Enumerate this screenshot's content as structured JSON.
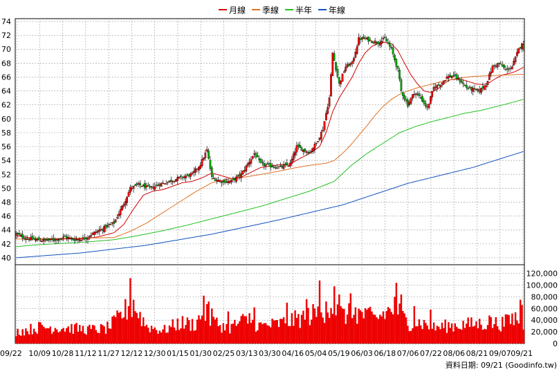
{
  "chart_data": [
    {
      "type": "candlestick",
      "legend": [
        {
          "label": "月線",
          "color": "#d00000"
        },
        {
          "label": "季線",
          "color": "#e07020"
        },
        {
          "label": "半年",
          "color": "#20c020"
        },
        {
          "label": "年線",
          "color": "#1050c0"
        }
      ],
      "legend_placement": "top-center",
      "ylim": [
        39,
        74.4
      ],
      "yticks": [
        40,
        42,
        44,
        46,
        48,
        50,
        52,
        54,
        56,
        58,
        60,
        62,
        64,
        66,
        68,
        70,
        72,
        74
      ],
      "grid": true,
      "up_color": "#ee0000",
      "down_color": "#00aa00",
      "price_anchors": [
        [
          0,
          43.4
        ],
        [
          6,
          42.8
        ],
        [
          12,
          42.6
        ],
        [
          18,
          42.5
        ],
        [
          24,
          42.6
        ],
        [
          30,
          43.0
        ],
        [
          36,
          42.6
        ],
        [
          42,
          42.8
        ],
        [
          48,
          43.6
        ],
        [
          54,
          44.3
        ],
        [
          60,
          45.0
        ],
        [
          66,
          47.8
        ],
        [
          70,
          50.0
        ],
        [
          75,
          50.5
        ],
        [
          82,
          50.0
        ],
        [
          88,
          50.6
        ],
        [
          94,
          51.0
        ],
        [
          100,
          51.5
        ],
        [
          108,
          52.0
        ],
        [
          113,
          53.5
        ],
        [
          117,
          55.5
        ],
        [
          120,
          51.5
        ],
        [
          126,
          51.0
        ],
        [
          132,
          51.0
        ],
        [
          138,
          52.0
        ],
        [
          142,
          53.5
        ],
        [
          146,
          55.0
        ],
        [
          150,
          53.5
        ],
        [
          156,
          53.2
        ],
        [
          162,
          53.0
        ],
        [
          168,
          53.5
        ],
        [
          172,
          56.0
        ],
        [
          176,
          55.5
        ],
        [
          180,
          55.2
        ],
        [
          184,
          56.5
        ],
        [
          188,
          58.5
        ],
        [
          190,
          60.8
        ],
        [
          192,
          63.0
        ],
        [
          194,
          69.5
        ],
        [
          198,
          65.0
        ],
        [
          202,
          67.5
        ],
        [
          206,
          68.0
        ],
        [
          210,
          71.5
        ],
        [
          214,
          71.5
        ],
        [
          218,
          71.2
        ],
        [
          222,
          71.0
        ],
        [
          226,
          71.5
        ],
        [
          230,
          70.0
        ],
        [
          234,
          67.0
        ],
        [
          236,
          64.0
        ],
        [
          240,
          62.0
        ],
        [
          244,
          63.8
        ],
        [
          248,
          63.0
        ],
        [
          252,
          61.5
        ],
        [
          256,
          64.5
        ],
        [
          260,
          65.0
        ],
        [
          264,
          66.0
        ],
        [
          268,
          66.2
        ],
        [
          272,
          65.5
        ],
        [
          276,
          64.5
        ],
        [
          280,
          64.2
        ],
        [
          284,
          64.0
        ],
        [
          288,
          65.0
        ],
        [
          292,
          67.5
        ],
        [
          296,
          68.0
        ],
        [
          300,
          67.0
        ],
        [
          304,
          67.5
        ],
        [
          308,
          70.0
        ],
        [
          310,
          71.0
        ],
        [
          311,
          70.0
        ]
      ],
      "ma_series": [
        {
          "name": "月線",
          "color": "#d00000",
          "anchors": [
            [
              0,
              43.2
            ],
            [
              10,
              42.8
            ],
            [
              20,
              42.6
            ],
            [
              30,
              42.7
            ],
            [
              40,
              42.7
            ],
            [
              50,
              43.0
            ],
            [
              60,
              43.6
            ],
            [
              66,
              44.8
            ],
            [
              72,
              47.0
            ],
            [
              78,
              49.0
            ],
            [
              84,
              49.6
            ],
            [
              90,
              49.8
            ],
            [
              96,
              50.3
            ],
            [
              102,
              50.8
            ],
            [
              108,
              51.0
            ],
            [
              114,
              51.5
            ],
            [
              120,
              52.2
            ],
            [
              126,
              51.8
            ],
            [
              132,
              51.4
            ],
            [
              138,
              51.6
            ],
            [
              144,
              52.3
            ],
            [
              150,
              53.0
            ],
            [
              156,
              53.2
            ],
            [
              162,
              53.4
            ],
            [
              168,
              53.5
            ],
            [
              174,
              54.3
            ],
            [
              180,
              55.0
            ],
            [
              186,
              56.0
            ],
            [
              190,
              58.0
            ],
            [
              194,
              61.0
            ],
            [
              198,
              63.0
            ],
            [
              202,
              64.5
            ],
            [
              206,
              66.0
            ],
            [
              210,
              68.0
            ],
            [
              214,
              69.5
            ],
            [
              218,
              70.4
            ],
            [
              222,
              70.9
            ],
            [
              226,
              71.0
            ],
            [
              230,
              70.8
            ],
            [
              234,
              69.8
            ],
            [
              238,
              68.0
            ],
            [
              242,
              66.3
            ],
            [
              246,
              65.0
            ],
            [
              250,
              64.0
            ],
            [
              254,
              63.8
            ],
            [
              258,
              64.2
            ],
            [
              262,
              65.0
            ],
            [
              266,
              65.6
            ],
            [
              270,
              65.7
            ],
            [
              274,
              65.6
            ],
            [
              278,
              65.3
            ],
            [
              282,
              65.0
            ],
            [
              286,
              64.9
            ],
            [
              290,
              65.2
            ],
            [
              294,
              65.8
            ],
            [
              298,
              66.3
            ],
            [
              302,
              66.5
            ],
            [
              306,
              66.8
            ],
            [
              311,
              67.4
            ]
          ]
        },
        {
          "name": "季線",
          "color": "#e07020",
          "anchors": [
            [
              0,
              42.7
            ],
            [
              30,
              42.8
            ],
            [
              60,
              42.9
            ],
            [
              70,
              43.8
            ],
            [
              80,
              45.0
            ],
            [
              90,
              46.5
            ],
            [
              100,
              48.0
            ],
            [
              110,
              49.5
            ],
            [
              120,
              50.8
            ],
            [
              130,
              51.3
            ],
            [
              140,
              51.6
            ],
            [
              150,
              52.0
            ],
            [
              160,
              52.4
            ],
            [
              170,
              52.9
            ],
            [
              180,
              53.3
            ],
            [
              190,
              53.6
            ],
            [
              195,
              54.0
            ],
            [
              200,
              55.0
            ],
            [
              205,
              56.2
            ],
            [
              210,
              57.6
            ],
            [
              215,
              59.0
            ],
            [
              220,
              60.5
            ],
            [
              225,
              61.8
            ],
            [
              230,
              62.8
            ],
            [
              235,
              63.5
            ],
            [
              240,
              64.0
            ],
            [
              245,
              64.4
            ],
            [
              250,
              64.7
            ],
            [
              260,
              65.3
            ],
            [
              270,
              65.8
            ],
            [
              280,
              66.1
            ],
            [
              290,
              66.2
            ],
            [
              300,
              66.3
            ],
            [
              311,
              66.4
            ]
          ]
        },
        {
          "name": "半年",
          "color": "#20c020",
          "anchors": [
            [
              0,
              41.6
            ],
            [
              15,
              41.9
            ],
            [
              30,
              42.1
            ],
            [
              45,
              42.3
            ],
            [
              60,
              42.6
            ],
            [
              75,
              43.2
            ],
            [
              90,
              43.9
            ],
            [
              105,
              44.7
            ],
            [
              120,
              45.6
            ],
            [
              135,
              46.5
            ],
            [
              150,
              47.4
            ],
            [
              165,
              48.5
            ],
            [
              180,
              49.6
            ],
            [
              195,
              51.0
            ],
            [
              205,
              53.2
            ],
            [
              215,
              55.0
            ],
            [
              225,
              56.5
            ],
            [
              235,
              58.0
            ],
            [
              245,
              58.9
            ],
            [
              255,
              59.6
            ],
            [
              265,
              60.2
            ],
            [
              275,
              60.8
            ],
            [
              285,
              61.2
            ],
            [
              295,
              61.8
            ],
            [
              305,
              62.4
            ],
            [
              311,
              62.8
            ]
          ]
        },
        {
          "name": "年線",
          "color": "#1050c0",
          "anchors": [
            [
              0,
              40.0
            ],
            [
              40,
              40.7
            ],
            [
              80,
              41.8
            ],
            [
              120,
              43.4
            ],
            [
              160,
              45.4
            ],
            [
              200,
              47.6
            ],
            [
              240,
              50.7
            ],
            [
              280,
              53.0
            ],
            [
              311,
              55.3
            ]
          ]
        }
      ]
    },
    {
      "type": "bar",
      "ylim": [
        0,
        135000
      ],
      "yticks": [
        0,
        20000,
        40000,
        60000,
        80000,
        100000,
        120000
      ],
      "ytick_labels": [
        "0",
        "20,000",
        "40,000",
        "60,000",
        "80,000",
        "100,000",
        "120,000"
      ],
      "grid": true,
      "bar_color": "#ee0000",
      "volume_anchors": [
        [
          0,
          20000
        ],
        [
          15,
          28000
        ],
        [
          30,
          27000
        ],
        [
          45,
          24000
        ],
        [
          55,
          25000
        ],
        [
          60,
          35000
        ],
        [
          70,
          65000
        ],
        [
          75,
          52000
        ],
        [
          80,
          30000
        ],
        [
          90,
          22000
        ],
        [
          100,
          35000
        ],
        [
          110,
          33000
        ],
        [
          115,
          55000
        ],
        [
          120,
          38000
        ],
        [
          130,
          26000
        ],
        [
          140,
          40000
        ],
        [
          150,
          30000
        ],
        [
          160,
          33000
        ],
        [
          170,
          40000
        ],
        [
          180,
          48000
        ],
        [
          188,
          55000
        ],
        [
          192,
          65000
        ],
        [
          196,
          60000
        ],
        [
          200,
          48000
        ],
        [
          210,
          52000
        ],
        [
          220,
          42000
        ],
        [
          228,
          55000
        ],
        [
          232,
          62000
        ],
        [
          240,
          35000
        ],
        [
          248,
          36000
        ],
        [
          256,
          27000
        ],
        [
          264,
          30000
        ],
        [
          272,
          32000
        ],
        [
          280,
          33000
        ],
        [
          290,
          35000
        ],
        [
          300,
          34000
        ],
        [
          306,
          45000
        ],
        [
          311,
          28000
        ]
      ],
      "volume_spikes": [
        [
          70,
          112000
        ],
        [
          72,
          75000
        ],
        [
          115,
          82000
        ],
        [
          118,
          72000
        ],
        [
          120,
          60000
        ],
        [
          130,
          55000
        ],
        [
          143,
          52000
        ],
        [
          146,
          62000
        ],
        [
          166,
          70000
        ],
        [
          178,
          76000
        ],
        [
          186,
          108000
        ],
        [
          190,
          72000
        ],
        [
          195,
          98000
        ],
        [
          198,
          84000
        ],
        [
          205,
          86000
        ],
        [
          208,
          62000
        ],
        [
          215,
          58000
        ],
        [
          233,
          104000
        ],
        [
          236,
          84000
        ],
        [
          244,
          64000
        ],
        [
          254,
          58000
        ],
        [
          290,
          48000
        ],
        [
          300,
          50000
        ],
        [
          309,
          75000
        ],
        [
          310,
          66000
        ]
      ]
    }
  ],
  "x_labels": [
    "09/22",
    "10/09",
    "10/28",
    "11/12",
    "11/27",
    "12/12",
    "12/30",
    "01/15",
    "01/30",
    "02/25",
    "03/13",
    "03/30",
    "04/16",
    "05/04",
    "05/19",
    "06/03",
    "06/18",
    "07/06",
    "07/22",
    "08/06",
    "08/21",
    "09/07",
    "09/21"
  ],
  "footer": "資料日期: 09/21 (Goodinfo.tw)"
}
